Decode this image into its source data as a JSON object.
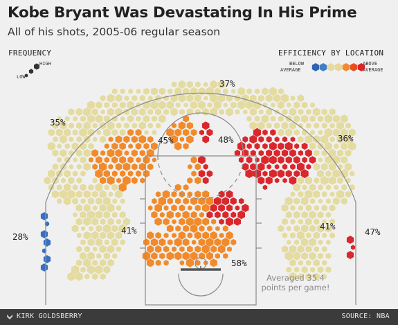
{
  "header": {
    "title": "Kobe Bryant Was Devastating In His Prime",
    "subtitle": "All of his shots, 2005-06 regular season"
  },
  "legend": {
    "frequency_title": "FREQUENCY",
    "frequency_low": "LOW",
    "frequency_high": "HIGH",
    "efficiency_title": "EFFICIENCY BY LOCATION",
    "below_line1": "BELOW",
    "below_line2": "AVERAGE",
    "above_line1": "ABOVE",
    "above_line2": "AVERAGE",
    "scale_colors": [
      "#2f63b1",
      "#3f7fc6",
      "#e5dca0",
      "#e8d69a",
      "#f08a2b",
      "#e84d1f",
      "#d9252a"
    ]
  },
  "colors": {
    "cream": "#e4dba0",
    "orange": "#f08a2b",
    "red": "#d9272d",
    "blue": "#3a6fbf",
    "court_line": "#8f8f8f",
    "footer_bg": "#3b3b3b"
  },
  "chart_data": {
    "type": "hexbin-shot-chart",
    "zones": [
      {
        "zone": "top of the arc three",
        "fg_pct": "37%",
        "efficiency": "average"
      },
      {
        "zone": "left wing three",
        "fg_pct": "35%",
        "efficiency": "average"
      },
      {
        "zone": "right wing three",
        "fg_pct": "36%",
        "efficiency": "average"
      },
      {
        "zone": "left corner three",
        "fg_pct": "28%",
        "efficiency": "below average"
      },
      {
        "zone": "right corner three",
        "fg_pct": "47%",
        "efficiency": "above average"
      },
      {
        "zone": "left elbow mid-range",
        "fg_pct": "45%",
        "efficiency": "above average"
      },
      {
        "zone": "right elbow mid-range",
        "fg_pct": "48%",
        "efficiency": "above average"
      },
      {
        "zone": "left baseline mid-range",
        "fg_pct": "41%",
        "efficiency": "average"
      },
      {
        "zone": "right baseline mid-range",
        "fg_pct": "41%",
        "efficiency": "average"
      },
      {
        "zone": "restricted area / paint",
        "fg_pct": "58%",
        "efficiency": "above average"
      }
    ],
    "annotation_line1": "Averaged 35.4",
    "annotation_line2": "points per game!"
  },
  "footer": {
    "author": "KIRK GOLDSBERRY",
    "source": "SOURCE: NBA"
  }
}
